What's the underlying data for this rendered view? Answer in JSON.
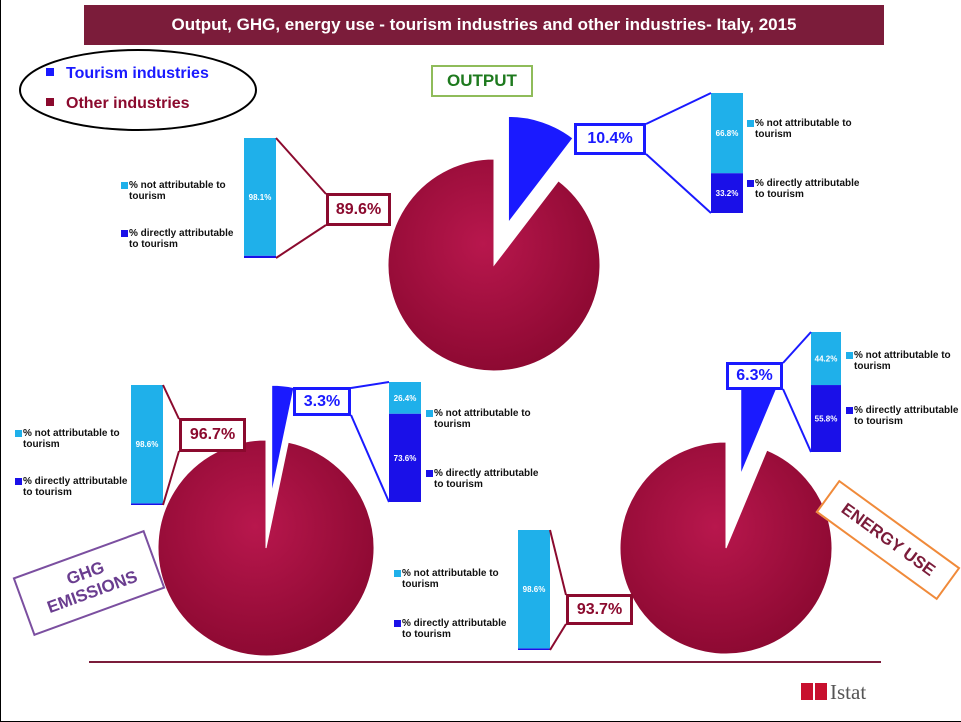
{
  "title": "Output, GHG, energy use - tourism industries and other industries- Italy, 2015",
  "legend": [
    {
      "name": "Tourism industries",
      "color": "#1a1aff"
    },
    {
      "name": "Other industries",
      "color": "#8b0a2e"
    }
  ],
  "chart_data": [
    {
      "type": "pie",
      "title": "OUTPUT",
      "values": [
        10.4,
        89.6
      ],
      "value_labels": [
        "10.4%",
        "89.6%"
      ],
      "colors": [
        "#1a1aff",
        "#9b0b3c"
      ]
    },
    {
      "type": "pie",
      "title": "GHG EMISSIONS",
      "values": [
        3.3,
        96.7
      ],
      "value_labels": [
        "3.3%",
        "96.7%"
      ],
      "colors": [
        "#1a1aff",
        "#9b0b3c"
      ]
    },
    {
      "type": "pie",
      "title": "ENERGY USE",
      "values": [
        6.3,
        93.7
      ],
      "value_labels": [
        "6.3%",
        "93.7%"
      ],
      "colors": [
        "#1a1aff",
        "#9b0b3c"
      ]
    },
    {
      "type": "bar",
      "stacked": true,
      "ylim": [
        0,
        100
      ],
      "series": [
        {
          "name": "% not attributable to tourism",
          "color": "#1fb0ea",
          "values": [
            66.8
          ],
          "value_labels": [
            "66.8%"
          ]
        },
        {
          "name": "% directly attributable to tourism",
          "color": "#1a10e8",
          "values": [
            33.2
          ],
          "value_labels": [
            "33.2%"
          ]
        }
      ]
    },
    {
      "type": "bar",
      "stacked": true,
      "ylim": [
        0,
        100
      ],
      "series": [
        {
          "name": "% not attributable to tourism",
          "color": "#1fb0ea",
          "values": [
            98.1
          ],
          "value_labels": [
            "98.1%"
          ]
        },
        {
          "name": "% directly attributable to tourism",
          "color": "#1a10e8",
          "values": [
            1.9
          ]
        }
      ]
    },
    {
      "type": "bar",
      "stacked": true,
      "ylim": [
        0,
        100
      ],
      "series": [
        {
          "name": "% not attributable to tourism",
          "color": "#1fb0ea",
          "values": [
            98.6
          ],
          "value_labels": [
            "98.6%"
          ]
        },
        {
          "name": "% directly attributable to tourism",
          "color": "#1a10e8",
          "values": [
            1.4
          ]
        }
      ]
    },
    {
      "type": "bar",
      "stacked": true,
      "ylim": [
        0,
        100
      ],
      "series": [
        {
          "name": "% not attributable to tourism",
          "color": "#1fb0ea",
          "values": [
            26.4
          ],
          "value_labels": [
            "26.4%"
          ]
        },
        {
          "name": "% directly attributable to tourism",
          "color": "#1a10e8",
          "values": [
            73.6
          ],
          "value_labels": [
            "73.6%"
          ]
        }
      ]
    },
    {
      "type": "bar",
      "stacked": true,
      "ylim": [
        0,
        100
      ],
      "series": [
        {
          "name": "% not attributable to tourism",
          "color": "#1fb0ea",
          "values": [
            44.2
          ],
          "value_labels": [
            "44.2%"
          ]
        },
        {
          "name": "% directly attributable to tourism",
          "color": "#1a10e8",
          "values": [
            55.8
          ],
          "value_labels": [
            "55.8%"
          ]
        }
      ]
    },
    {
      "type": "bar",
      "stacked": true,
      "ylim": [
        0,
        100
      ],
      "series": [
        {
          "name": "% not attributable to tourism",
          "color": "#1fb0ea",
          "values": [
            98.6
          ],
          "value_labels": [
            "98.6%"
          ]
        },
        {
          "name": "% directly attributable to tourism",
          "color": "#1a10e8",
          "values": [
            1.4
          ]
        }
      ]
    }
  ],
  "logo": "Istat"
}
